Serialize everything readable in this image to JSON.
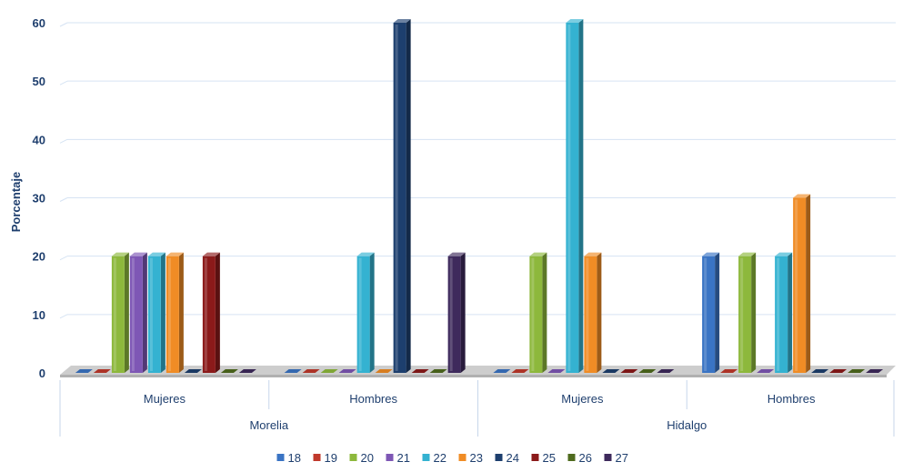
{
  "chart_data": {
    "type": "bar",
    "title": "",
    "xlabel": "",
    "ylabel": "Porcentaje",
    "ylim": [
      0,
      60
    ],
    "yticks": [
      0,
      10,
      20,
      30,
      40,
      50,
      60
    ],
    "grid": true,
    "legend_position": "bottom",
    "groups": [
      {
        "label": "Morelia",
        "categories": [
          "Mujeres",
          "Hombres"
        ]
      },
      {
        "label": "Hidalgo",
        "categories": [
          "Mujeres",
          "Hombres"
        ]
      }
    ],
    "categories": [
      "Mujeres",
      "Hombres",
      "Mujeres",
      "Hombres"
    ],
    "series": [
      {
        "name": "18",
        "color": "#3a74c4",
        "values": [
          0,
          0,
          0,
          20
        ]
      },
      {
        "name": "19",
        "color": "#c0392b",
        "values": [
          0,
          0,
          0,
          0
        ]
      },
      {
        "name": "20",
        "color": "#8db83c",
        "values": [
          20,
          0,
          20,
          20
        ]
      },
      {
        "name": "21",
        "color": "#7e57b5",
        "values": [
          20,
          0,
          0,
          0
        ]
      },
      {
        "name": "22",
        "color": "#34b2d1",
        "values": [
          20,
          20,
          60,
          20
        ]
      },
      {
        "name": "23",
        "color": "#f08c25",
        "values": [
          20,
          0,
          20,
          30
        ]
      },
      {
        "name": "24",
        "color": "#1d3f6e",
        "values": [
          0,
          60,
          0,
          0
        ]
      },
      {
        "name": "25",
        "color": "#8b1a1a",
        "values": [
          20,
          0,
          0,
          0
        ]
      },
      {
        "name": "26",
        "color": "#4f6b1e",
        "values": [
          0,
          0,
          0,
          0
        ]
      },
      {
        "name": "27",
        "color": "#3e2a5c",
        "values": [
          0,
          20,
          0,
          0
        ]
      }
    ]
  }
}
